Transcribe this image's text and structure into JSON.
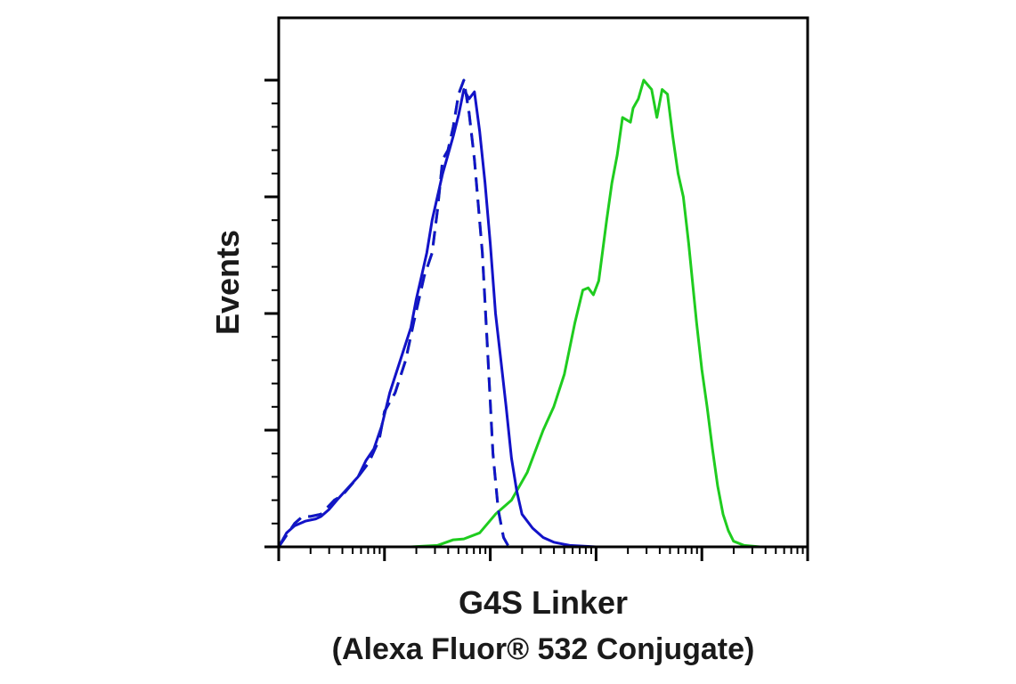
{
  "chart_data": {
    "type": "line",
    "title": "",
    "xlabel": [
      "G4S Linker",
      "(Alexa Fluor® 532 Conjugate)"
    ],
    "ylabel": "Events",
    "xscale": "log",
    "xlim": [
      0,
      100
    ],
    "ylim": [
      0,
      100
    ],
    "grid": false,
    "legend": "none",
    "colors": {
      "blue": "#1212c8",
      "green": "#1fcc1f",
      "axis": "#000000",
      "text": "#1a1a1a"
    },
    "series": [
      {
        "color": "#1fcc1f",
        "dash": "solid",
        "x": [
          0.0,
          5.0,
          10.0,
          15.0,
          20.0,
          25.0,
          30.0,
          33.0,
          35.0,
          38.0,
          41.0,
          44.0,
          47.0,
          50.0,
          52.0,
          54.0,
          56.0,
          57.5,
          58.5,
          59.5,
          60.5,
          62.0,
          63.0,
          64.0,
          65.0,
          66.5,
          67.0,
          68.0,
          69.0,
          70.5,
          71.5,
          72.5,
          73.5,
          74.5,
          75.5,
          76.5,
          77.5,
          79.0,
          80.0,
          81.0,
          82.0,
          83.0,
          84.0,
          85.0,
          86.0,
          88.0,
          91.0,
          95.0,
          100.0
        ],
        "y": [
          0.0,
          0.0,
          0.0,
          0.0,
          0.0,
          0.0,
          0.3,
          1.5,
          1.7,
          3.0,
          7.0,
          10.0,
          16.0,
          25.0,
          30.0,
          37.0,
          48.0,
          55.0,
          55.5,
          54.0,
          57.0,
          70.0,
          78.0,
          84.0,
          92.0,
          91.0,
          94.0,
          96.0,
          100.0,
          98.0,
          92.0,
          98.0,
          97.0,
          88.0,
          80.0,
          75.0,
          65.0,
          48.0,
          38.0,
          30.0,
          21.0,
          13.0,
          7.0,
          3.5,
          1.2,
          0.3,
          0.0,
          0.0,
          0.0
        ]
      },
      {
        "color": "#1fcc1f",
        "dash": "dashed",
        "x": [
          0.0,
          1.5,
          3.0,
          4.5,
          6.0,
          8.0,
          10.5,
          12.0,
          15.0,
          17.0,
          19.0,
          20.0,
          22.0,
          24.0,
          25.5,
          27.5,
          29.0,
          30.0,
          31.0,
          32.0,
          33.0,
          34.0,
          35.0,
          36.0,
          37.0,
          38.5,
          39.5,
          40.5,
          41.5,
          42.5,
          43.5,
          100.0
        ],
        "y": [
          0.0,
          2.5,
          5.0,
          6.5,
          6.5,
          7.0,
          10.0,
          11.0,
          15.0,
          18.0,
          23.0,
          29.0,
          33.0,
          40.0,
          48.0,
          58.0,
          63.0,
          72.0,
          83.0,
          85.0,
          90.0,
          97.0,
          100.0,
          93.0,
          83.0,
          63.0,
          42.0,
          20.0,
          8.0,
          2.0,
          0.0,
          0.0
        ]
      },
      {
        "color": "#1212c8",
        "dash": "solid",
        "x": [
          0.0,
          1.5,
          3.0,
          5.0,
          7.0,
          8.0,
          9.5,
          11.0,
          13.0,
          15.0,
          16.5,
          18.0,
          19.5,
          21.0,
          23.0,
          25.0,
          26.0,
          27.0,
          28.0,
          29.0,
          30.0,
          31.0,
          32.0,
          33.0,
          34.0,
          35.0,
          36.0,
          37.0,
          38.0,
          39.0,
          40.0,
          41.0,
          42.0,
          43.0,
          44.0,
          45.0,
          46.0,
          48.0,
          50.0,
          52.0,
          55.0,
          60.0,
          100.0
        ],
        "y": [
          0.0,
          3.0,
          4.5,
          5.5,
          6.0,
          6.5,
          8.0,
          10.0,
          12.5,
          15.0,
          18.5,
          21.0,
          26.0,
          33.0,
          40.0,
          47.0,
          53.0,
          58.0,
          63.0,
          70.0,
          75.0,
          80.0,
          84.0,
          88.0,
          92.5,
          98.0,
          96.0,
          97.5,
          89.0,
          78.0,
          65.0,
          50.0,
          40.0,
          30.0,
          19.0,
          12.0,
          7.0,
          4.0,
          2.0,
          1.0,
          0.3,
          0.0,
          0.0
        ]
      },
      {
        "color": "#1212c8",
        "dash": "dashed",
        "x": [
          0.0,
          1.5,
          3.0,
          4.5,
          6.0,
          8.0,
          10.5,
          12.0,
          15.0,
          17.0,
          19.0,
          20.0,
          22.0,
          24.0,
          25.5,
          27.5,
          29.0,
          30.0,
          31.0,
          32.0,
          33.0,
          34.0,
          35.0,
          36.0,
          37.0,
          38.5,
          39.5,
          40.5,
          41.5,
          42.5,
          43.5,
          100.0
        ],
        "y": [
          0.0,
          2.5,
          5.0,
          6.5,
          6.5,
          7.0,
          10.0,
          11.0,
          15.0,
          18.0,
          23.0,
          29.0,
          33.0,
          40.0,
          48.0,
          58.0,
          63.0,
          72.0,
          83.0,
          85.0,
          90.0,
          97.0,
          100.0,
          93.0,
          83.0,
          63.0,
          42.0,
          20.0,
          8.0,
          2.0,
          0.0,
          0.0
        ]
      }
    ]
  }
}
